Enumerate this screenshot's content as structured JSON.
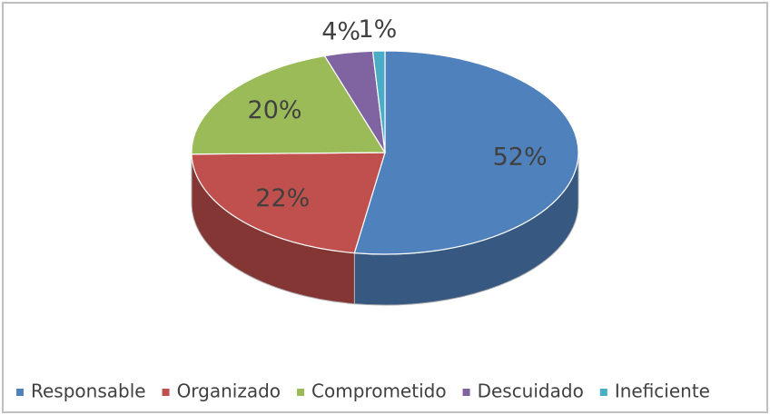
{
  "chart_data": {
    "type": "pie",
    "three_d": true,
    "categories": [
      "Responsable",
      "Organizado",
      "Comprometido",
      "Descuidado",
      "Ineficiente"
    ],
    "values": [
      52,
      22,
      20,
      4,
      1
    ],
    "value_labels": [
      "52%",
      "22%",
      "20%",
      "4%",
      "1%"
    ],
    "colors": [
      "#4f81bd",
      "#c0504d",
      "#9bbb59",
      "#8064a2",
      "#4bacc6"
    ],
    "legend": "bottom"
  }
}
